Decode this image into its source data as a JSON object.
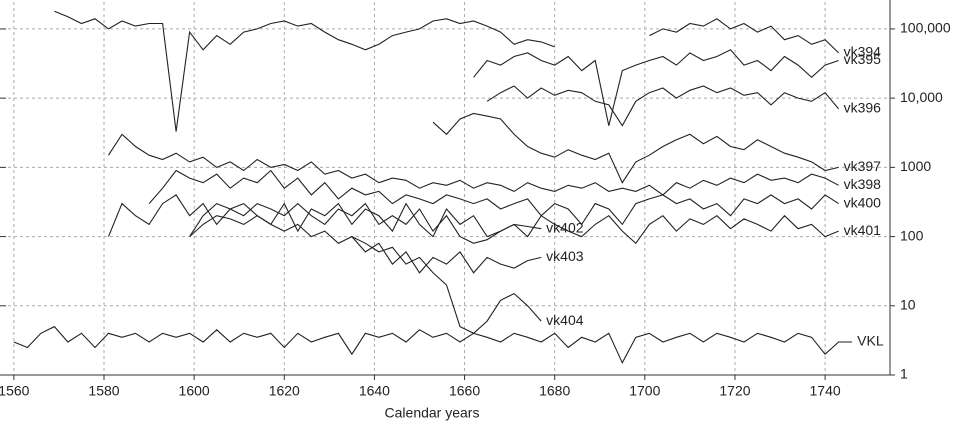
{
  "chart_data": {
    "type": "line",
    "x_label": "Calendar years",
    "log_y": true,
    "grid": true,
    "color": "#222222",
    "xlim": [
      1558.7,
      1754.4
    ],
    "xticks": [
      1560,
      1580,
      1600,
      1620,
      1640,
      1660,
      1680,
      1700,
      1720,
      1740
    ],
    "ylim": [
      1,
      245000
    ],
    "yticks": [
      1,
      10,
      100,
      1000,
      {
        "value": 10000,
        "label": "10,000"
      },
      {
        "value": 100000,
        "label": "100,000"
      }
    ],
    "x": [
      1560,
      1563,
      1566,
      1569,
      1572,
      1575,
      1578,
      1581,
      1584,
      1587,
      1590,
      1593,
      1596,
      1599,
      1602,
      1605,
      1608,
      1611,
      1614,
      1617,
      1620,
      1623,
      1626,
      1629,
      1632,
      1635,
      1638,
      1641,
      1644,
      1647,
      1650,
      1653,
      1656,
      1659,
      1662,
      1665,
      1668,
      1671,
      1674,
      1677,
      1680,
      1683,
      1686,
      1689,
      1692,
      1695,
      1698,
      1701,
      1704,
      1707,
      1710,
      1713,
      1716,
      1719,
      1722,
      1725,
      1728,
      1731,
      1734,
      1737,
      1740,
      1743,
      1746
    ],
    "series": [
      {
        "name": "vk394",
        "values": [
          null,
          null,
          null,
          180000,
          150000,
          120000,
          140000,
          100000,
          130000,
          110000,
          120000,
          120000,
          3300,
          90000,
          50000,
          80000,
          60000,
          90000,
          100000,
          120000,
          130000,
          110000,
          120000,
          90000,
          70000,
          60000,
          50000,
          60000,
          80000,
          90000,
          100000,
          130000,
          140000,
          120000,
          130000,
          110000,
          90000,
          60000,
          70000,
          65000,
          55000,
          null,
          null,
          null,
          null,
          null,
          null,
          80000,
          100000,
          90000,
          120000,
          110000,
          140000,
          100000,
          120000,
          90000,
          110000,
          70000,
          80000,
          60000,
          70000,
          45000,
          null
        ]
      },
      {
        "name": "vk395",
        "values": [
          null,
          null,
          null,
          null,
          null,
          null,
          null,
          null,
          null,
          null,
          null,
          null,
          null,
          null,
          null,
          null,
          null,
          null,
          null,
          null,
          null,
          null,
          null,
          null,
          null,
          null,
          null,
          null,
          null,
          null,
          null,
          null,
          null,
          null,
          20000,
          35000,
          30000,
          40000,
          45000,
          35000,
          30000,
          40000,
          25000,
          35000,
          4000,
          25000,
          30000,
          35000,
          40000,
          30000,
          45000,
          35000,
          40000,
          50000,
          30000,
          35000,
          25000,
          40000,
          30000,
          20000,
          30000,
          35000,
          null
        ]
      },
      {
        "name": "vk396",
        "values": [
          null,
          null,
          null,
          null,
          null,
          null,
          null,
          null,
          null,
          null,
          null,
          null,
          null,
          null,
          null,
          null,
          null,
          null,
          null,
          null,
          null,
          null,
          null,
          null,
          null,
          null,
          null,
          null,
          null,
          null,
          null,
          null,
          null,
          null,
          null,
          9000,
          12000,
          15000,
          10000,
          14000,
          11000,
          13000,
          12000,
          9000,
          8000,
          4000,
          9000,
          12000,
          14000,
          10000,
          13000,
          15000,
          12000,
          14000,
          11000,
          12000,
          8000,
          12000,
          10000,
          9000,
          12000,
          7000,
          null
        ]
      },
      {
        "name": "vk397",
        "values": [
          null,
          null,
          null,
          null,
          null,
          null,
          null,
          null,
          null,
          null,
          null,
          null,
          null,
          null,
          null,
          null,
          null,
          null,
          null,
          null,
          null,
          null,
          null,
          null,
          null,
          null,
          null,
          null,
          null,
          null,
          null,
          4500,
          3000,
          5000,
          6000,
          5500,
          5000,
          3000,
          2000,
          1600,
          1400,
          1800,
          1500,
          1300,
          1600,
          600,
          1200,
          1500,
          2000,
          2500,
          3000,
          2200,
          2800,
          2000,
          1800,
          2500,
          2000,
          1600,
          1400,
          1200,
          900,
          1000,
          null
        ]
      },
      {
        "name": "vk398",
        "values": [
          null,
          null,
          null,
          null,
          null,
          null,
          null,
          1500,
          3000,
          2000,
          1500,
          1300,
          1600,
          1200,
          1400,
          1000,
          1200,
          900,
          1300,
          1000,
          1100,
          900,
          1200,
          800,
          900,
          700,
          800,
          600,
          700,
          650,
          500,
          600,
          550,
          650,
          500,
          600,
          550,
          450,
          600,
          500,
          450,
          550,
          500,
          600,
          450,
          500,
          450,
          550,
          400,
          600,
          500,
          650,
          550,
          700,
          600,
          800,
          650,
          700,
          600,
          800,
          700,
          550,
          null
        ]
      },
      {
        "name": "vk400",
        "values": [
          null,
          null,
          null,
          null,
          null,
          null,
          null,
          null,
          null,
          null,
          300,
          500,
          900,
          700,
          600,
          800,
          500,
          700,
          600,
          900,
          500,
          700,
          400,
          600,
          350,
          500,
          400,
          450,
          300,
          400,
          350,
          300,
          400,
          350,
          300,
          350,
          250,
          300,
          350,
          200,
          300,
          250,
          150,
          300,
          250,
          150,
          300,
          350,
          400,
          300,
          350,
          250,
          300,
          200,
          350,
          300,
          400,
          300,
          350,
          250,
          400,
          300,
          null
        ]
      },
      {
        "name": "vk401",
        "values": [
          null,
          null,
          null,
          null,
          null,
          null,
          null,
          100,
          300,
          200,
          150,
          300,
          400,
          200,
          300,
          150,
          250,
          300,
          200,
          150,
          300,
          120,
          250,
          200,
          300,
          150,
          250,
          200,
          120,
          300,
          150,
          100,
          250,
          150,
          200,
          100,
          120,
          150,
          100,
          200,
          150,
          120,
          100,
          150,
          200,
          120,
          80,
          150,
          200,
          120,
          180,
          150,
          200,
          130,
          180,
          150,
          120,
          200,
          130,
          150,
          100,
          120,
          null
        ]
      },
      {
        "name": "vk402",
        "values": [
          null,
          null,
          null,
          null,
          null,
          null,
          null,
          null,
          null,
          null,
          null,
          null,
          null,
          100,
          200,
          300,
          250,
          200,
          300,
          250,
          200,
          300,
          200,
          150,
          250,
          200,
          300,
          150,
          200,
          150,
          250,
          120,
          200,
          100,
          80,
          90,
          120,
          150,
          140,
          130,
          null,
          null,
          null,
          null,
          null,
          null,
          null,
          null,
          null,
          null,
          null,
          null,
          null,
          null,
          null,
          null,
          null,
          null,
          null,
          null,
          null,
          null,
          null
        ]
      },
      {
        "name": "vk403",
        "values": [
          null,
          null,
          null,
          null,
          null,
          null,
          null,
          null,
          null,
          null,
          null,
          null,
          null,
          100,
          150,
          200,
          180,
          150,
          200,
          150,
          120,
          150,
          100,
          120,
          80,
          100,
          60,
          80,
          40,
          60,
          30,
          50,
          40,
          60,
          30,
          50,
          40,
          35,
          45,
          50,
          null,
          null,
          null,
          null,
          null,
          null,
          null,
          null,
          null,
          null,
          null,
          null,
          null,
          null,
          null,
          null,
          null,
          null,
          null,
          null,
          null,
          null,
          null
        ]
      },
      {
        "name": "vk404",
        "values": [
          null,
          null,
          null,
          null,
          null,
          null,
          null,
          null,
          null,
          null,
          null,
          null,
          null,
          null,
          null,
          null,
          null,
          null,
          null,
          null,
          null,
          null,
          null,
          null,
          null,
          100,
          80,
          60,
          70,
          40,
          50,
          30,
          20,
          5,
          4,
          6,
          12,
          15,
          10,
          6,
          null,
          null,
          null,
          null,
          null,
          null,
          null,
          null,
          null,
          null,
          null,
          null,
          null,
          null,
          null,
          null,
          null,
          null,
          null,
          null,
          null,
          null,
          null
        ]
      },
      {
        "name": "VKL",
        "values": [
          3,
          2.5,
          4,
          5,
          3,
          4,
          2.5,
          4,
          3.5,
          4,
          3,
          4,
          3.5,
          4,
          3,
          4.5,
          3,
          4,
          3.5,
          4,
          2.5,
          4,
          3,
          3.5,
          4,
          2,
          4,
          3.5,
          4,
          3,
          4.5,
          3.5,
          4,
          3,
          4,
          3.5,
          3,
          4,
          3.5,
          3,
          4,
          2.5,
          3.5,
          3,
          4,
          1.5,
          3.5,
          4,
          3,
          3.5,
          4,
          3,
          4,
          3.5,
          3,
          4,
          3.5,
          3,
          4,
          3.5,
          2,
          3,
          3
        ]
      }
    ]
  }
}
